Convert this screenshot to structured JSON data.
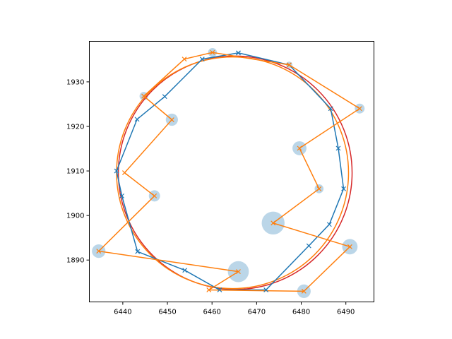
{
  "chart_data": {
    "type": "scatter",
    "title": "",
    "xlabel": "",
    "ylabel": "",
    "xlim": [
      6432.5,
      6496.3
    ],
    "ylim": [
      1880.6,
      1939.1
    ],
    "xticks": [
      6440,
      6450,
      6460,
      6470,
      6480,
      6490
    ],
    "yticks": [
      1890,
      1900,
      1910,
      1920,
      1930
    ],
    "grid": false,
    "legend": "none",
    "colors": {
      "blue": "#1f77b4",
      "orange": "#ff7f0e",
      "red": "#d62728",
      "bubble": "#1f77b4"
    },
    "series": [
      {
        "marker": "x",
        "color": "#1f77b4",
        "x": [
          6465.9,
          6477.3,
          6486.6,
          6488.3,
          6489.5,
          6486.3,
          6481.7,
          6472.1,
          6461.7,
          6453.9,
          6443.3,
          6439.8,
          6438.6,
          6443.2,
          6449.4,
          6457.8,
          6465.9
        ],
        "y": [
          1936.5,
          1933.8,
          1924.0,
          1915.1,
          1906.0,
          1898.0,
          1893.2,
          1883.3,
          1883.3,
          1887.7,
          1891.9,
          1904.4,
          1910.0,
          1921.6,
          1926.7,
          1935.1,
          1936.5
        ]
      },
      {
        "marker": "x",
        "color": "#ff7f0e",
        "x": [
          6477.3,
          6493.1,
          6479.6,
          6484.0,
          6473.7,
          6490.9,
          6480.6,
          6459.3,
          6465.9,
          6434.6,
          6447.1,
          6440.4,
          6451.0,
          6444.7,
          6453.8,
          6460.1,
          6477.3
        ],
        "y": [
          1933.8,
          1924.0,
          1915.1,
          1906.0,
          1898.3,
          1893.0,
          1883.0,
          1883.3,
          1887.4,
          1892.0,
          1904.4,
          1909.6,
          1921.5,
          1926.8,
          1935.1,
          1936.6,
          1933.8
        ]
      }
    ],
    "bubbles": [
      {
        "x": 6460.1,
        "y": 1936.6,
        "size": 1.0
      },
      {
        "x": 6444.7,
        "y": 1926.8,
        "size": 0.9
      },
      {
        "x": 6451.0,
        "y": 1921.5,
        "size": 1.7
      },
      {
        "x": 6447.1,
        "y": 1904.4,
        "size": 1.5
      },
      {
        "x": 6434.6,
        "y": 1892.0,
        "size": 2.0
      },
      {
        "x": 6465.9,
        "y": 1887.4,
        "size": 3.6
      },
      {
        "x": 6480.6,
        "y": 1883.0,
        "size": 2.0
      },
      {
        "x": 6473.7,
        "y": 1898.3,
        "size": 4.0
      },
      {
        "x": 6490.9,
        "y": 1893.0,
        "size": 2.4
      },
      {
        "x": 6484.0,
        "y": 1906.0,
        "size": 1.0
      },
      {
        "x": 6479.6,
        "y": 1915.1,
        "size": 2.1
      },
      {
        "x": 6493.1,
        "y": 1924.0,
        "size": 1.2
      },
      {
        "x": 6477.3,
        "y": 1933.8,
        "size": 0.5
      }
    ],
    "circles": [
      {
        "color": "#d62728",
        "cx": 6465.2,
        "cy": 1909.6,
        "r": 26.2
      },
      {
        "color": "#ff7f0e",
        "cx": 6464.6,
        "cy": 1909.6,
        "r": 26.0
      }
    ]
  }
}
